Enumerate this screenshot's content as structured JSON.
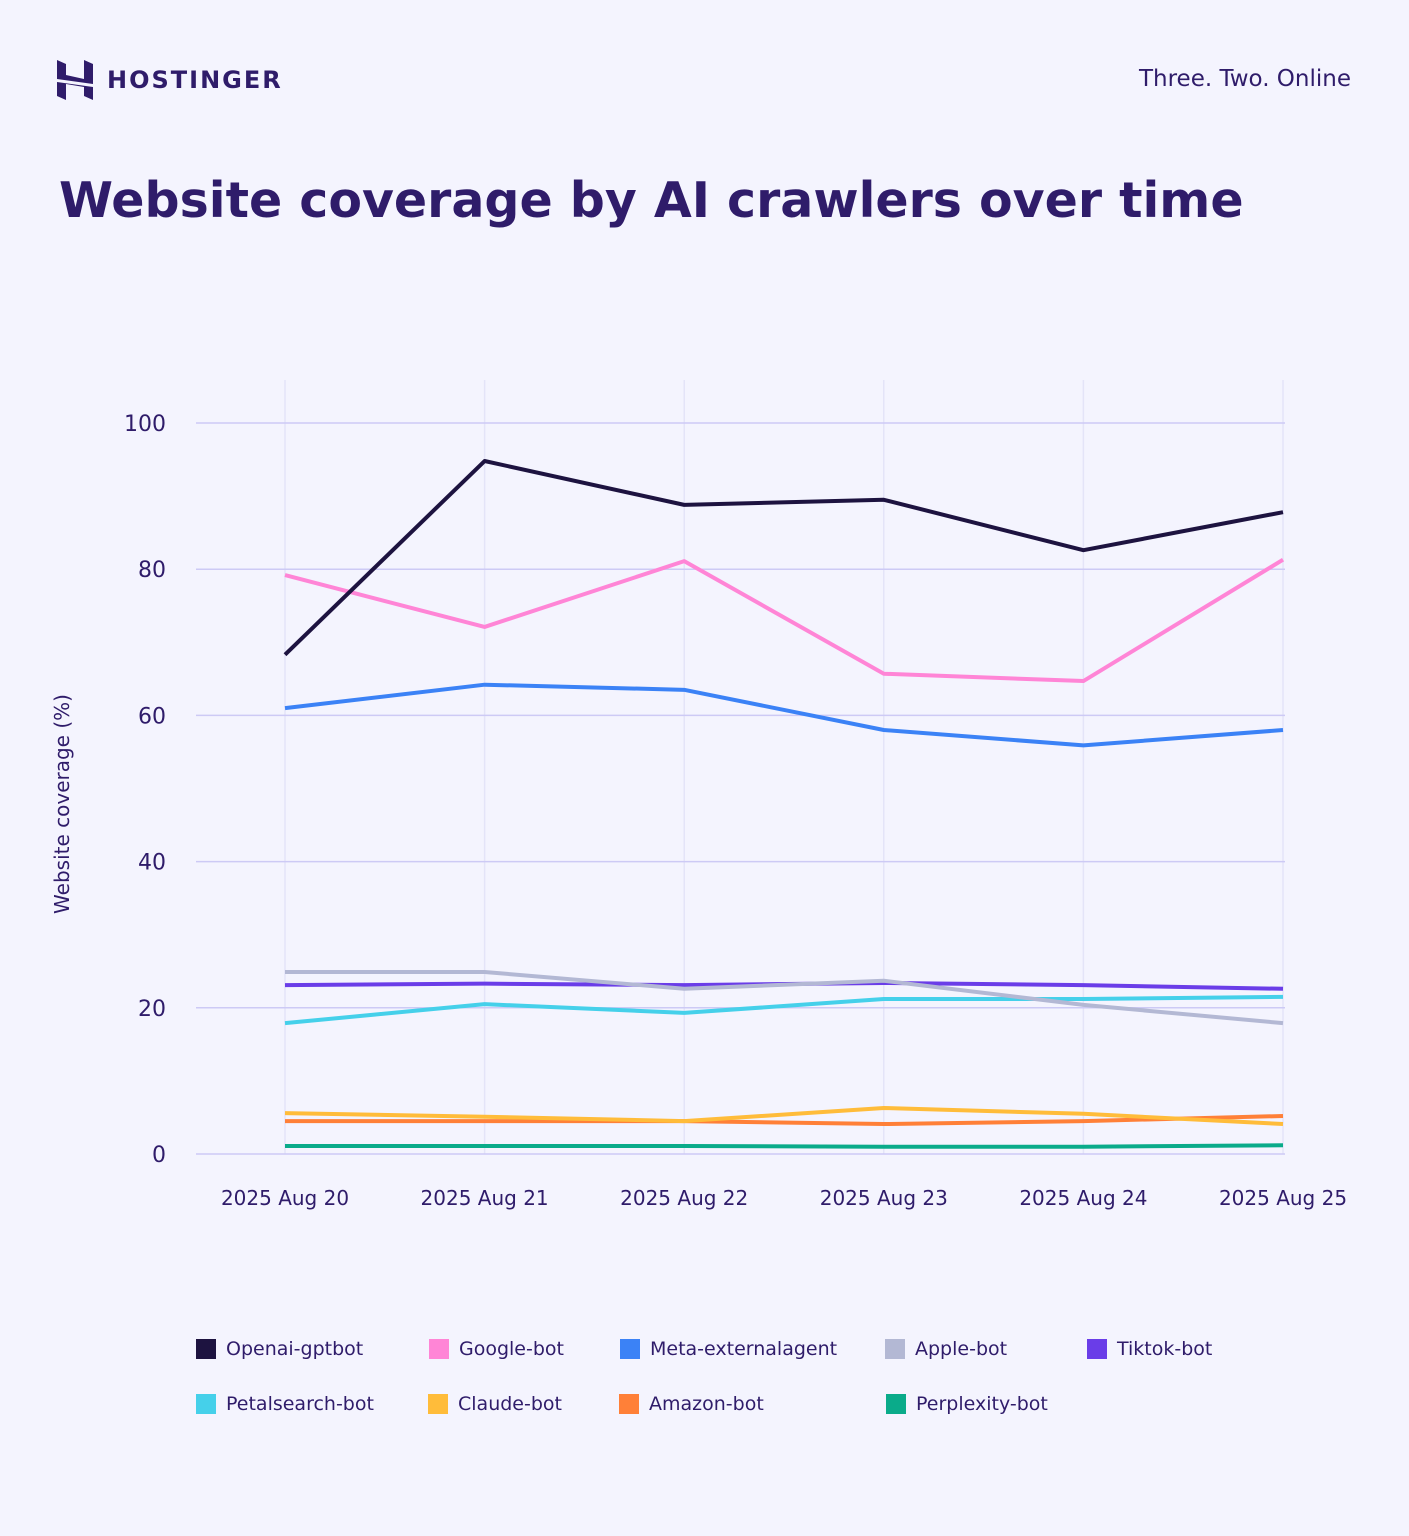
{
  "header": {
    "brand": "HOSTINGER",
    "tagline": "Three. Two. Online"
  },
  "chart_data": {
    "type": "line",
    "title": "Website coverage by AI crawlers over time",
    "xlabel": "",
    "ylabel": "Website coverage (%)",
    "ylim": [
      0,
      100
    ],
    "yticks": [
      0,
      20,
      40,
      60,
      80,
      100
    ],
    "categories": [
      "2025 Aug 20",
      "2025 Aug 21",
      "2025 Aug 22",
      "2025 Aug 23",
      "2025 Aug 24",
      "2025 Aug 25"
    ],
    "grid": true,
    "legend_position": "bottom",
    "series": [
      {
        "name": "Openai-gptbot",
        "color": "#1d1340",
        "values": [
          68.3,
          94.8,
          88.8,
          89.5,
          82.6,
          87.8
        ]
      },
      {
        "name": "Google-bot",
        "color": "#ff85d6",
        "values": [
          79.2,
          72.1,
          81.1,
          65.7,
          64.7,
          81.3
        ]
      },
      {
        "name": "Meta-externalagent",
        "color": "#3b82f6",
        "values": [
          61.0,
          64.2,
          63.5,
          58.0,
          55.9,
          58.0
        ]
      },
      {
        "name": "Apple-bot",
        "color": "#b3b8d4",
        "values": [
          24.9,
          24.9,
          22.6,
          23.7,
          20.4,
          17.9
        ]
      },
      {
        "name": "Tiktok-bot",
        "color": "#6a3de8",
        "values": [
          23.1,
          23.3,
          23.1,
          23.4,
          23.1,
          22.6
        ]
      },
      {
        "name": "Petalsearch-bot",
        "color": "#45d0ea",
        "values": [
          17.9,
          20.5,
          19.3,
          21.2,
          21.2,
          21.5
        ]
      },
      {
        "name": "Claude-bot",
        "color": "#ffbc3a",
        "values": [
          5.6,
          5.1,
          4.5,
          6.3,
          5.5,
          4.1
        ]
      },
      {
        "name": "Amazon-bot",
        "color": "#ff8038",
        "values": [
          4.5,
          4.5,
          4.5,
          4.1,
          4.5,
          5.2
        ]
      },
      {
        "name": "Perplexity-bot",
        "color": "#0aab8a",
        "values": [
          1.1,
          1.1,
          1.1,
          1.0,
          1.0,
          1.2
        ]
      }
    ]
  }
}
